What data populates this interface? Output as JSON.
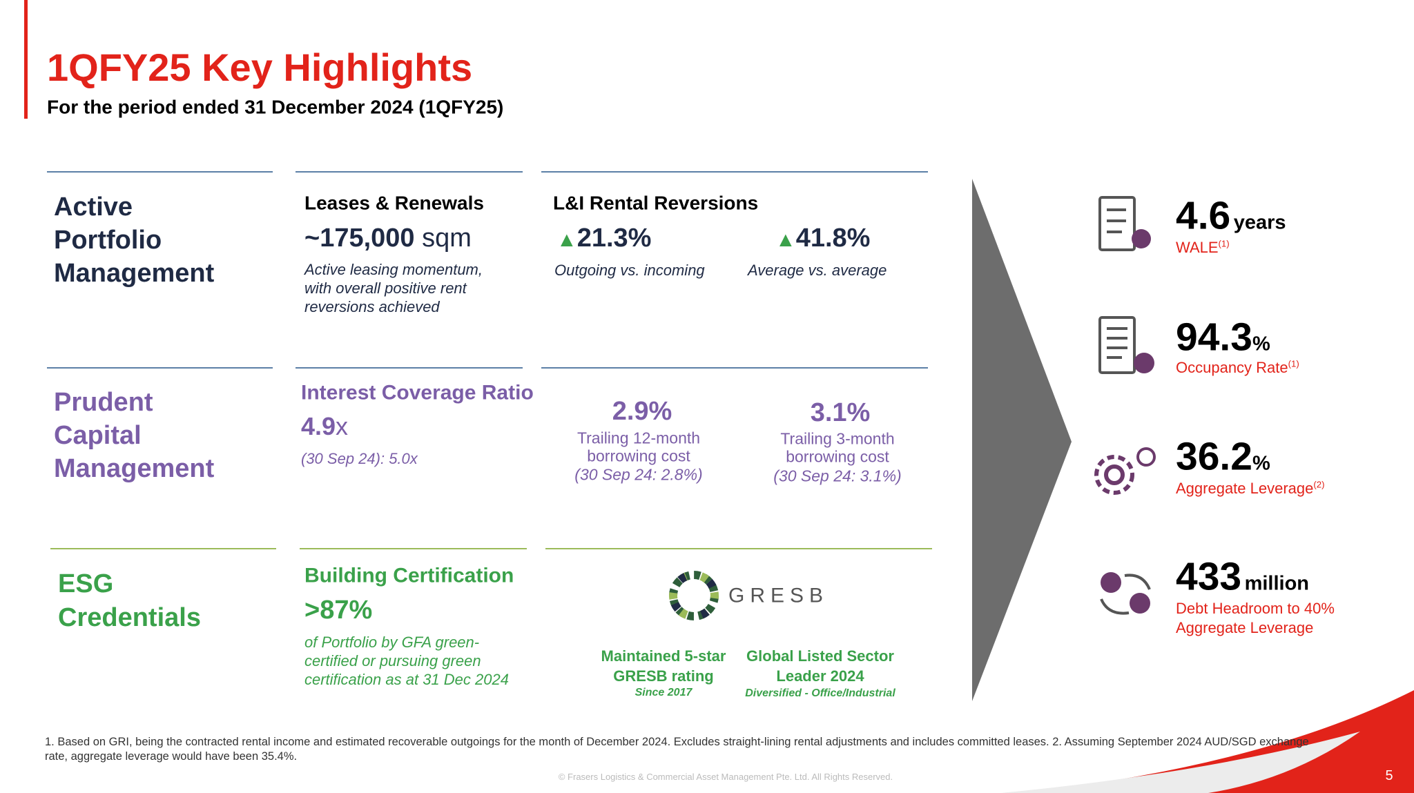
{
  "header": {
    "title": "1QFY25 Key Highlights",
    "subtitle": "For the period ended 31 December 2024 (1QFY25)"
  },
  "portfolio": {
    "heading": [
      "Active",
      "Portfolio",
      "Management"
    ],
    "leases": {
      "title": "Leases & Renewals",
      "value": "~175,000",
      "unit": "sqm",
      "description": [
        "Active leasing momentum,",
        "with overall positive rent",
        "reversions achieved"
      ]
    },
    "reversions": {
      "title": "L&I Rental Reversions",
      "items": [
        {
          "value": "21.3%",
          "label": "Outgoing vs. incoming"
        },
        {
          "value": "41.8%",
          "label": "Average vs. average"
        }
      ]
    }
  },
  "capital": {
    "heading": [
      "Prudent",
      "Capital",
      "Management"
    ],
    "icr": {
      "title": "Interest Coverage Ratio",
      "value": "4.9",
      "unit": "x",
      "note": "(30 Sep 24): 5.0x"
    },
    "costs": [
      {
        "value": "2.9%",
        "lines": [
          "Trailing 12-month",
          "borrowing cost",
          "(30 Sep 24: 2.8%)"
        ]
      },
      {
        "value": "3.1%",
        "lines": [
          "Trailing 3-month",
          "borrowing cost",
          "(30 Sep 24: 3.1%)"
        ]
      }
    ]
  },
  "esg": {
    "heading": [
      "ESG",
      "Credentials"
    ],
    "certification": {
      "title": "Building Certification",
      "value": ">87%",
      "description": [
        "of Portfolio by GFA green-",
        "certified or pursuing green",
        "certification as at 31 Dec 2024"
      ]
    },
    "gresb_logo": "GRESB",
    "awards": [
      {
        "lines": [
          "Maintained 5-star",
          "GRESB rating"
        ],
        "note": "Since 2017"
      },
      {
        "lines": [
          "Global Listed Sector",
          "Leader 2024"
        ],
        "note": "Diversified - Office/Industrial"
      }
    ]
  },
  "metrics": [
    {
      "value": "4.6",
      "unit": "years",
      "label": [
        "WALE"
      ],
      "note": "(1)"
    },
    {
      "value": "94.3",
      "unit": "%",
      "label": [
        "Occupancy Rate"
      ],
      "note": "(1)"
    },
    {
      "value": "36.2",
      "unit": "%",
      "label": [
        "Aggregate Leverage"
      ],
      "note": "(2)"
    },
    {
      "value": "433",
      "unit": "million",
      "label": [
        "Debt Headroom to 40%",
        "Aggregate Leverage"
      ]
    }
  ],
  "footnote": "1. Based on GRI, being the contracted rental income and estimated recoverable outgoings for the month of December 2024. Excludes straight-lining rental adjustments and includes committed leases. 2. Assuming September 2024 AUD/SGD exchange rate, aggregate leverage would have been 35.4%.",
  "copyright": "© Frasers Logistics & Commercial Asset Management Pte. Ltd. All Rights Reserved.",
  "page_number": "5"
}
